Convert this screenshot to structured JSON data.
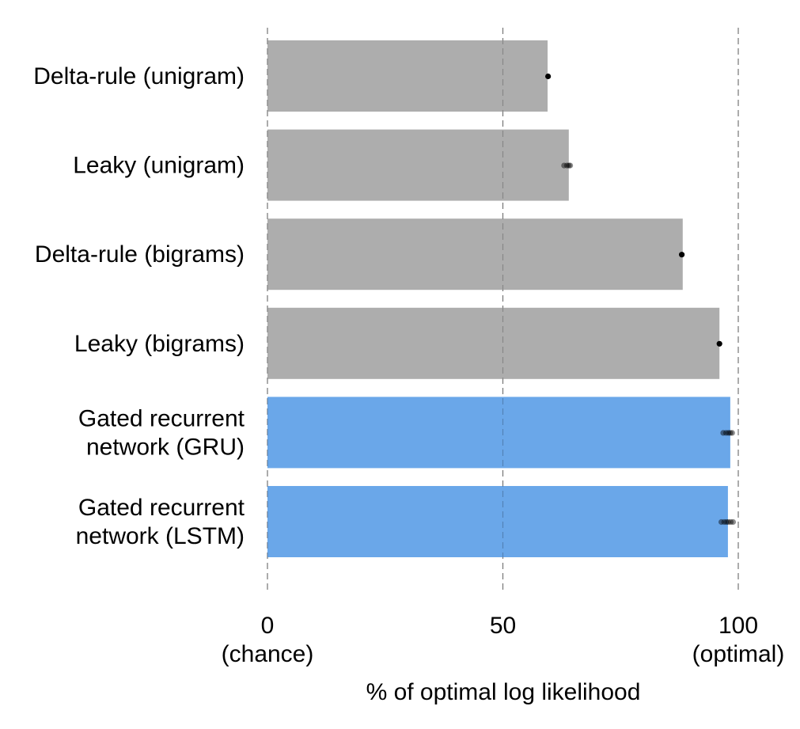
{
  "chart_data": {
    "type": "bar",
    "orientation": "horizontal",
    "title": "",
    "xlabel": "% of optimal log likelihood",
    "ylabel": "",
    "xlim": [
      0,
      100
    ],
    "grid": "vertical dashed at ticks",
    "legend": "none",
    "categories": [
      [
        "Delta-rule (unigram)"
      ],
      [
        "Leaky (unigram)"
      ],
      [
        "Delta-rule (bigrams)"
      ],
      [
        "Leaky (bigrams)"
      ],
      [
        "Gated recurrent",
        "network (GRU)"
      ],
      [
        "Gated recurrent",
        "network (LSTM)"
      ]
    ],
    "values": [
      59.5,
      64.0,
      88.2,
      96.0,
      98.3,
      97.8
    ],
    "points": [
      [
        59.6
      ],
      [
        63.0,
        63.6,
        64.0,
        64.3
      ],
      [
        88.0
      ],
      [
        96.0
      ],
      [
        96.8,
        97.4,
        97.9,
        98.3,
        98.7
      ],
      [
        96.4,
        97.0,
        97.5,
        97.9,
        98.4,
        98.9
      ]
    ],
    "bar_colors": [
      "#adadad",
      "#adadad",
      "#adadad",
      "#adadad",
      "#6aa7e9",
      "#6aa7e9"
    ],
    "point_color": "#000000",
    "ticks": [
      {
        "value": 0,
        "label": "0",
        "sublabel": "(chance)"
      },
      {
        "value": 50,
        "label": "50",
        "sublabel": ""
      },
      {
        "value": 100,
        "label": "100",
        "sublabel": "(optimal)"
      }
    ]
  }
}
